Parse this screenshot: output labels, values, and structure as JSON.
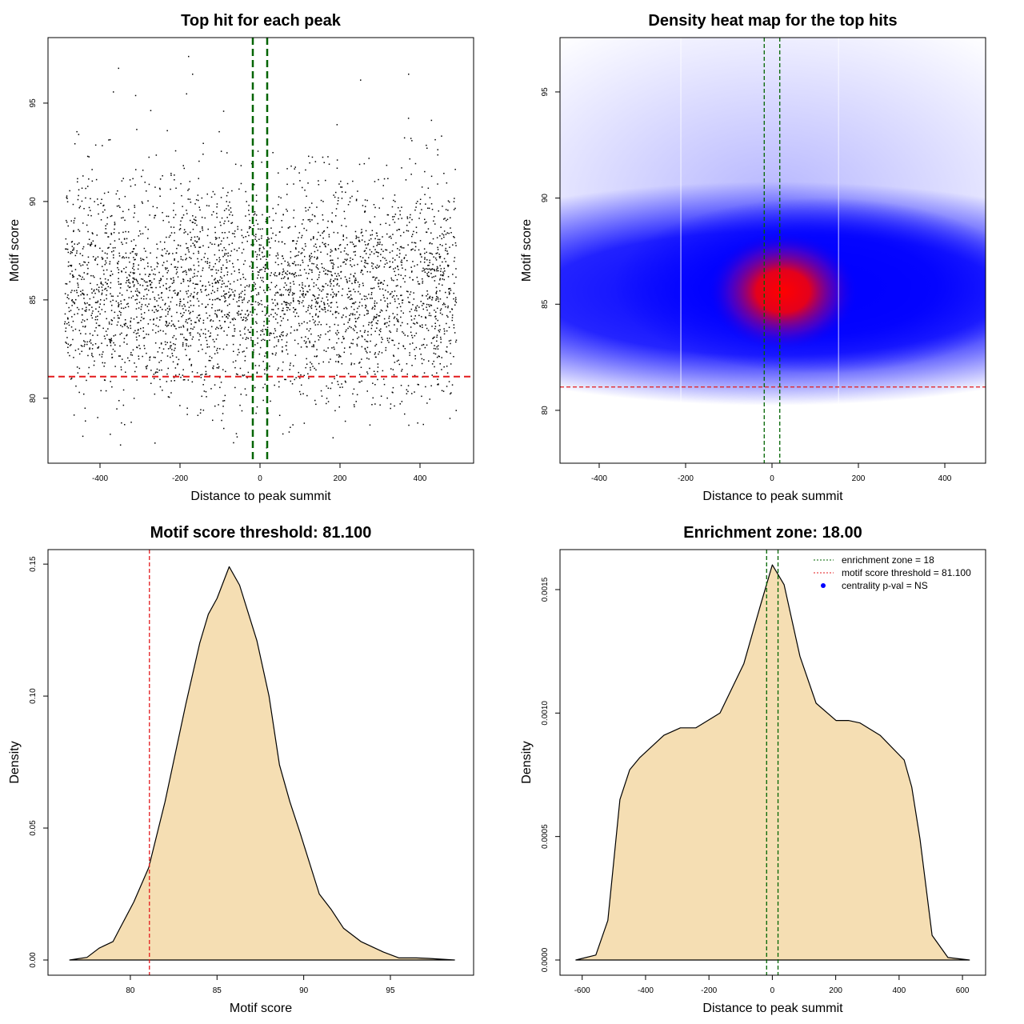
{
  "chart_data": [
    {
      "type": "scatter",
      "title": "Top hit for each peak",
      "xlabel": "Distance to peak summit",
      "ylabel": "Motif score",
      "xlim": [
        -530,
        534
      ],
      "ylim": [
        76.7,
        98.33
      ],
      "xticks": [
        -400,
        -200,
        0,
        200,
        400
      ],
      "yticks": [
        80,
        85,
        90,
        95
      ],
      "points_generation": {
        "n": 3600,
        "x_range": [
          -490,
          490
        ],
        "y_mean": 85.5,
        "y_sd": 2.8,
        "y_range": [
          77.5,
          97.5
        ]
      },
      "outliers": [
        [
          -180,
          97.4
        ],
        [
          -170,
          96.5
        ],
        [
          -355,
          96.8
        ],
        [
          250,
          96.2
        ],
        [
          370,
          96.5
        ],
        [
          -185,
          95.5
        ]
      ],
      "hlines": [
        {
          "y": 81.1,
          "color": "#e31a1c",
          "style": "dashed"
        }
      ],
      "vlines": [
        {
          "x": -18,
          "color": "#006400"
        },
        {
          "x": 18,
          "color": "#006400"
        }
      ]
    },
    {
      "type": "heatmap",
      "title": "Density heat map for the top hits",
      "xlabel": "Distance to peak summit",
      "ylabel": "Motif score",
      "xlim": [
        -490.7,
        494.4
      ],
      "ylim": [
        77.51,
        97.56
      ],
      "xticks": [
        -400,
        -200,
        0,
        200,
        400
      ],
      "yticks": [
        80,
        85,
        90,
        95
      ],
      "peak_center": [
        25,
        85.6
      ],
      "band_center_y": 85.5,
      "colors": {
        "low": "#ffffff",
        "mid": "#0000ff",
        "high": "#ff0000"
      },
      "hlines": [
        {
          "y": 81.1,
          "color": "#e31a1c"
        }
      ],
      "vlines": [
        {
          "x": -18,
          "color": "#006400"
        },
        {
          "x": 18,
          "color": "#006400"
        }
      ]
    },
    {
      "type": "area",
      "title": "Motif score threshold: 81.100",
      "xlabel": "Motif score",
      "ylabel": "Density",
      "xlim": [
        75.25,
        99.8
      ],
      "ylim": [
        -0.00576,
        0.1555
      ],
      "xticks": [
        80,
        85,
        90,
        95
      ],
      "yticks": [
        0,
        0.05,
        0.1,
        0.15
      ],
      "ytick_labels": [
        "0.00",
        "0.05",
        "0.10",
        "0.15"
      ],
      "x": [
        76.5,
        77.5,
        78.2,
        79.0,
        79.4,
        80.2,
        81.06,
        82.0,
        83.2,
        84.0,
        84.5,
        85.0,
        85.7,
        86.3,
        87.3,
        88.0,
        88.6,
        89.2,
        89.8,
        90.9,
        91.6,
        92.3,
        93.3,
        94.6,
        95.5,
        96.5,
        97.2,
        98.7
      ],
      "y": [
        0,
        0.001,
        0.0045,
        0.007,
        0.012,
        0.022,
        0.035,
        0.06,
        0.097,
        0.12,
        0.131,
        0.137,
        0.149,
        0.142,
        0.121,
        0.1,
        0.074,
        0.06,
        0.048,
        0.025,
        0.019,
        0.012,
        0.007,
        0.003,
        0.0008,
        0.0008,
        0.0006,
        0
      ],
      "fill": "#f5deb3",
      "vlines": [
        {
          "x": 81.1,
          "color": "#e31a1c"
        }
      ]
    },
    {
      "type": "area",
      "title": "Enrichment zone: 18.00",
      "xlabel": "Distance to peak summit",
      "ylabel": "Density",
      "xlim": [
        -670,
        673
      ],
      "ylim": [
        -6.16e-05,
        0.001662
      ],
      "xticks": [
        -600,
        -400,
        -200,
        0,
        200,
        400,
        600
      ],
      "yticks": [
        0,
        0.0005,
        0.001,
        0.0015
      ],
      "ytick_labels": [
        "0.0000",
        "0.0005",
        "0.0010",
        "0.0015"
      ],
      "x": [
        -620,
        -557,
        -519,
        -481,
        -450,
        -418,
        -342,
        -290,
        -241,
        -165,
        -90,
        -39,
        0,
        37,
        87,
        138,
        201,
        240,
        277,
        340,
        416,
        440,
        466,
        504,
        554,
        622
      ],
      "y": [
        0,
        2e-05,
        0.00016,
        0.00065,
        0.00077,
        0.00082,
        0.00091,
        0.00094,
        0.00094,
        0.001,
        0.0012,
        0.00143,
        0.0016,
        0.00152,
        0.00123,
        0.00104,
        0.00097,
        0.00097,
        0.00096,
        0.00091,
        0.00081,
        0.0007,
        0.00049,
        0.0001,
        1e-05,
        0
      ],
      "fill": "#f5deb3",
      "vlines": [
        {
          "x": -18,
          "color": "#006400"
        },
        {
          "x": 18,
          "color": "#006400"
        }
      ],
      "legend": {
        "placement": "top-right",
        "entries": [
          {
            "label": "enrichment zone = 18",
            "color": "#006400",
            "kind": "dotted-line"
          },
          {
            "label": "motif score threshold = 81.100",
            "color": "#e31a1c",
            "kind": "dotted-line"
          },
          {
            "label": "centrality p-val = NS",
            "color": "#0000ff",
            "kind": "point"
          }
        ]
      }
    }
  ]
}
